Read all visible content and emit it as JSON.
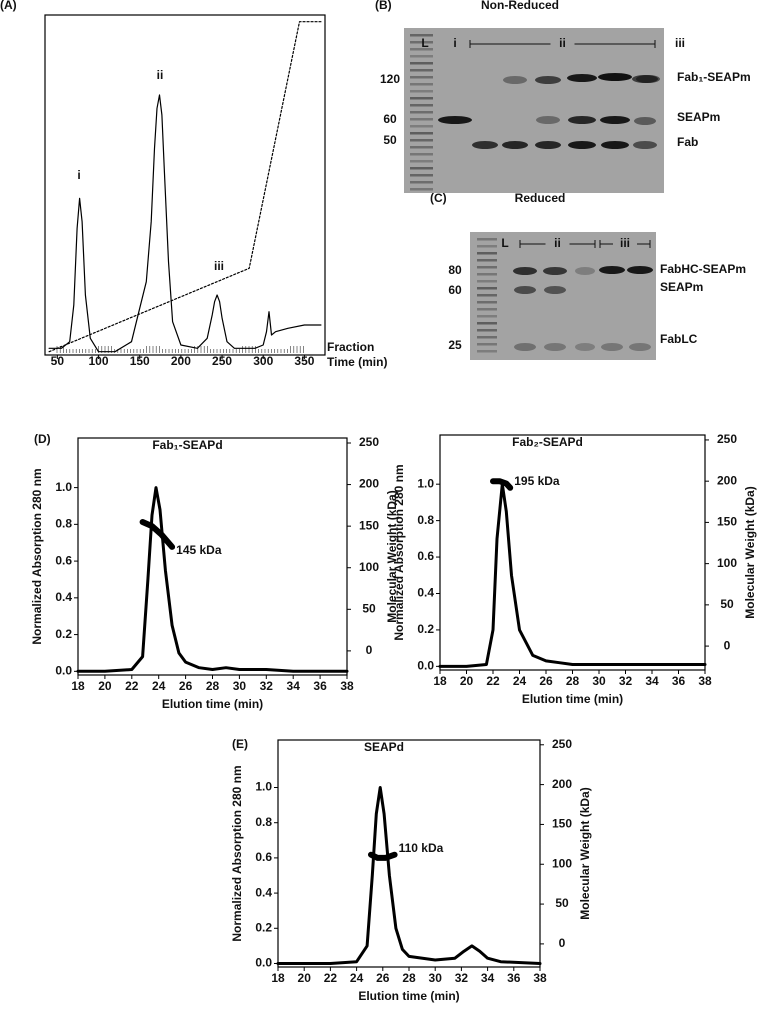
{
  "chart_data": [
    {
      "type": "line",
      "panel": "(A)",
      "xlabel": "Time (min)",
      "fraction_label": "Fraction",
      "xlim": [
        35,
        375
      ],
      "ylim": [
        0,
        1.02
      ],
      "xticks": [
        50,
        100,
        150,
        200,
        250,
        300,
        350
      ],
      "annotations": [
        "i",
        "ii",
        "iii"
      ],
      "series": [
        {
          "color": "#000000",
          "style": "solid",
          "x": [
            40,
            55,
            65,
            70,
            74,
            77,
            80,
            84,
            90,
            100,
            120,
            140,
            150,
            158,
            164,
            168,
            171,
            174,
            177,
            180,
            185,
            190,
            200,
            220,
            232,
            238,
            241,
            244,
            247,
            250,
            256,
            265,
            290,
            300,
            304,
            307,
            310,
            315,
            330,
            350,
            370
          ],
          "values": [
            0.02,
            0.02,
            0.04,
            0.15,
            0.38,
            0.47,
            0.4,
            0.18,
            0.05,
            0.01,
            0.01,
            0.04,
            0.14,
            0.22,
            0.4,
            0.62,
            0.74,
            0.78,
            0.72,
            0.55,
            0.28,
            0.1,
            0.03,
            0.02,
            0.05,
            0.12,
            0.16,
            0.18,
            0.16,
            0.11,
            0.04,
            0.02,
            0.02,
            0.03,
            0.07,
            0.13,
            0.06,
            0.07,
            0.08,
            0.09,
            0.09
          ]
        },
        {
          "color": "#000000",
          "style": "dotted",
          "x": [
            40,
            283,
            344,
            370
          ],
          "values": [
            0.01,
            0.26,
            1.0,
            1.0
          ]
        }
      ]
    },
    {
      "type": "line",
      "panel": "(D)",
      "title": "Fab₁-SEAPd",
      "xlabel": "Elution time (min)",
      "ylabel": "Normalized Absorption 280 nm",
      "y2label": "Molecular Weight (kDa)",
      "xlim": [
        18,
        38
      ],
      "ylim": [
        -0.02,
        1.27
      ],
      "y2lim": [
        -29,
        256
      ],
      "xticks": [
        18,
        20,
        22,
        24,
        26,
        28,
        30,
        32,
        34,
        36,
        38
      ],
      "yticks": [
        {
          "value": 0,
          "label": "0.0"
        },
        {
          "value": 0.2,
          "label": "0.2"
        },
        {
          "value": 0.4,
          "label": "0.4"
        },
        {
          "value": 0.6,
          "label": "0.6"
        },
        {
          "value": 0.8,
          "label": "0.8"
        },
        {
          "value": 1,
          "label": "1.0"
        }
      ],
      "y2ticks": [
        0,
        50,
        100,
        150,
        200,
        250
      ],
      "annotations": [
        "145 kDa"
      ],
      "series": [
        {
          "color": "#000000",
          "x": [
            18,
            20,
            22,
            22.8,
            23.2,
            23.5,
            23.8,
            24.1,
            24.5,
            25,
            25.5,
            26,
            27,
            28,
            29,
            30,
            32,
            34,
            36,
            38
          ],
          "values": [
            0,
            0,
            0.01,
            0.08,
            0.5,
            0.85,
            1.0,
            0.88,
            0.55,
            0.25,
            0.1,
            0.05,
            0.02,
            0.01,
            0.02,
            0.01,
            0.01,
            0,
            0,
            0
          ]
        },
        {
          "color": "#000000",
          "axis": "y2",
          "x": [
            22.8,
            23.5,
            24.2,
            25
          ],
          "values": [
            155,
            150,
            140,
            125
          ]
        }
      ]
    },
    {
      "type": "line",
      "title": "Fab₂-SEAPd",
      "xlabel": "Elution time (min)",
      "ylabel": "Normalized Absorption 280 nm",
      "y2label": "Molecular Weight (kDa)",
      "xlim": [
        18,
        38
      ],
      "ylim": [
        -0.02,
        1.27
      ],
      "y2lim": [
        -29,
        256
      ],
      "xticks": [
        18,
        20,
        22,
        24,
        26,
        28,
        30,
        32,
        34,
        36,
        38
      ],
      "yticks": [
        {
          "value": 0,
          "label": "0.0"
        },
        {
          "value": 0.2,
          "label": "0.2"
        },
        {
          "value": 0.4,
          "label": "0.4"
        },
        {
          "value": 0.6,
          "label": "0.6"
        },
        {
          "value": 0.8,
          "label": "0.8"
        },
        {
          "value": 1,
          "label": "1.0"
        }
      ],
      "y2ticks": [
        0,
        50,
        100,
        150,
        200,
        250
      ],
      "annotations": [
        "195 kDa"
      ],
      "series": [
        {
          "color": "#000000",
          "x": [
            18,
            20,
            21.5,
            22,
            22.3,
            22.7,
            23,
            23.4,
            24,
            25,
            26,
            27,
            28,
            30,
            32,
            34,
            36,
            38
          ],
          "values": [
            0,
            0,
            0.01,
            0.2,
            0.7,
            1.0,
            0.85,
            0.5,
            0.2,
            0.06,
            0.03,
            0.02,
            0.01,
            0.01,
            0.01,
            0.01,
            0.01,
            0.01
          ]
        },
        {
          "color": "#000000",
          "axis": "y2",
          "x": [
            22,
            22.5,
            23,
            23.3
          ],
          "values": [
            200,
            200,
            197,
            192
          ]
        }
      ]
    },
    {
      "type": "line",
      "panel": "(E)",
      "title": "SEAPd",
      "xlabel": "Elution time (min)",
      "ylabel": "Normalized Absorption 280 nm",
      "y2label": "Molecular Weight (kDa)",
      "xlim": [
        18,
        38
      ],
      "ylim": [
        -0.02,
        1.27
      ],
      "y2lim": [
        -29,
        256
      ],
      "xticks": [
        18,
        20,
        22,
        24,
        26,
        28,
        30,
        32,
        34,
        36,
        38
      ],
      "yticks": [
        {
          "value": 0,
          "label": "0.0"
        },
        {
          "value": 0.2,
          "label": "0.2"
        },
        {
          "value": 0.4,
          "label": "0.4"
        },
        {
          "value": 0.6,
          "label": "0.6"
        },
        {
          "value": 0.8,
          "label": "0.8"
        },
        {
          "value": 1,
          "label": "1.0"
        }
      ],
      "y2ticks": [
        0,
        50,
        100,
        150,
        200,
        250
      ],
      "annotations": [
        "110 kDa"
      ],
      "series": [
        {
          "color": "#000000",
          "x": [
            18,
            22,
            24,
            24.8,
            25.2,
            25.5,
            25.8,
            26.1,
            26.5,
            27,
            27.5,
            28,
            30,
            31.5,
            32.2,
            32.8,
            33.4,
            34,
            35,
            38
          ],
          "values": [
            0,
            0,
            0.01,
            0.1,
            0.5,
            0.85,
            1.0,
            0.85,
            0.5,
            0.2,
            0.08,
            0.04,
            0.02,
            0.03,
            0.07,
            0.1,
            0.07,
            0.03,
            0.01,
            0
          ]
        },
        {
          "color": "#000000",
          "axis": "y2",
          "x": [
            25.1,
            25.6,
            26.2,
            26.9
          ],
          "values": [
            112,
            108,
            108,
            112
          ]
        }
      ]
    }
  ],
  "gels": [
    {
      "panel": "(B)",
      "title": "Non-Reduced",
      "lanes": [
        "L",
        "i",
        "ii",
        "iii"
      ],
      "markers": [
        120,
        60,
        50
      ],
      "bands": [
        "Fab₁-SEAPm",
        "SEAPm",
        "Fab"
      ]
    },
    {
      "panel": "(C)",
      "title": "Reduced",
      "lanes": [
        "L",
        "ii",
        "iii"
      ],
      "markers": [
        80,
        60,
        25
      ],
      "bands": [
        "FabHC-SEAPm",
        "SEAPm",
        "FabLC"
      ]
    }
  ]
}
